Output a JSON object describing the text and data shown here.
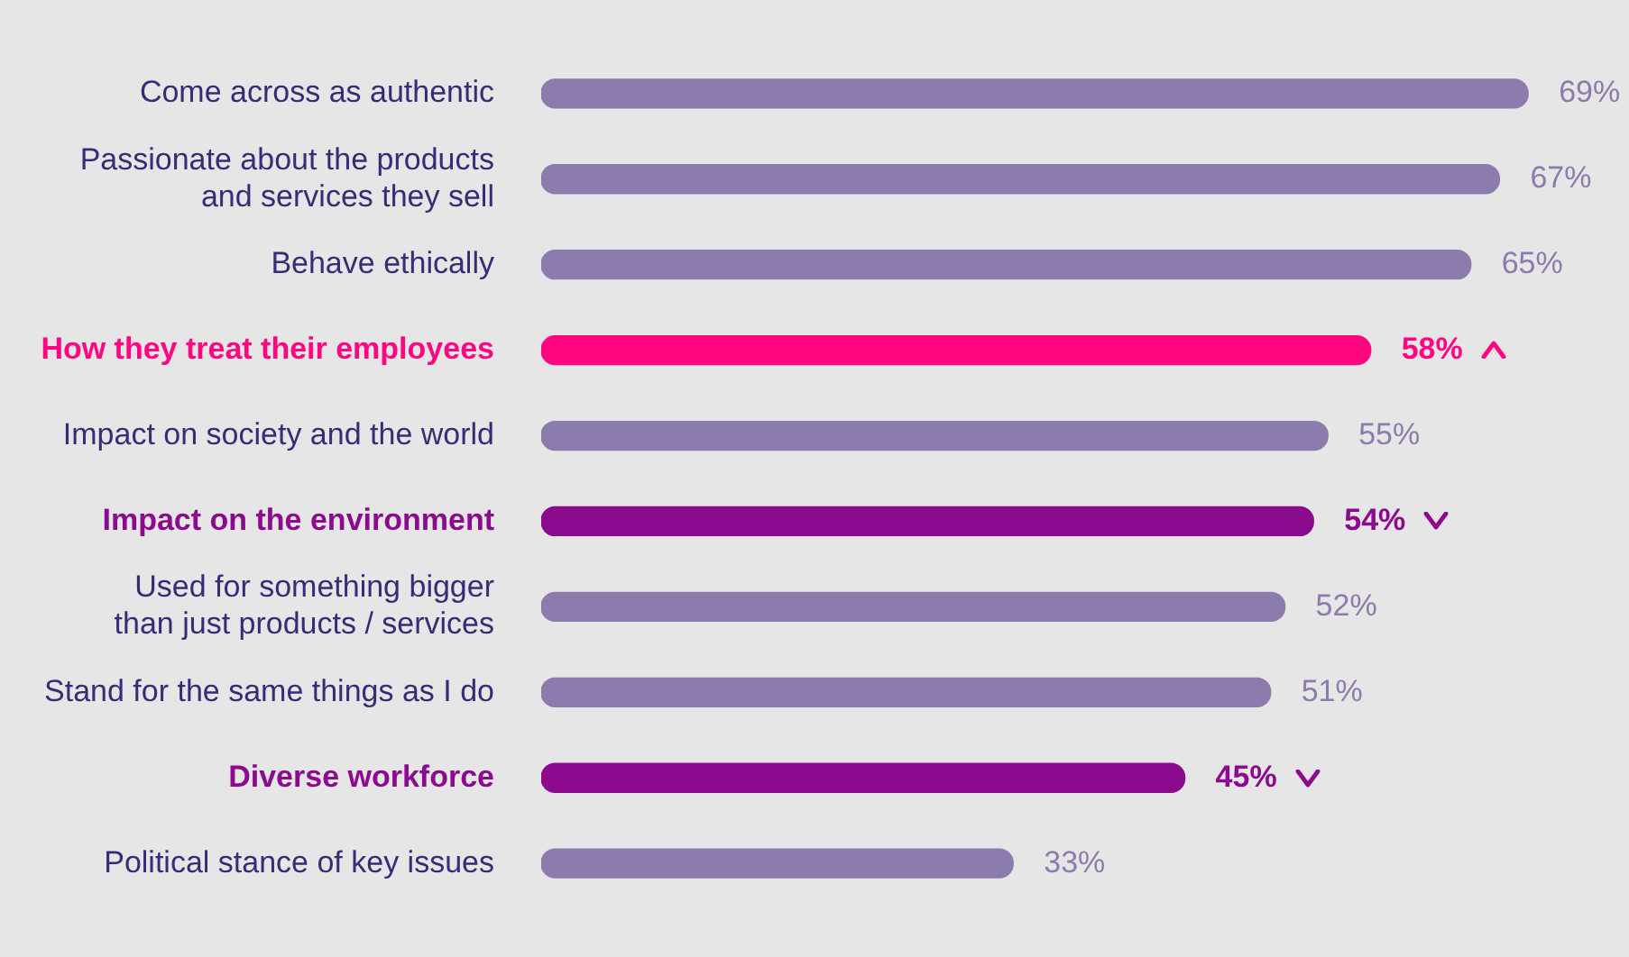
{
  "chart_data": {
    "type": "bar",
    "orientation": "horizontal",
    "categories": [
      "Come across as authentic",
      "Passionate about the products and services they sell",
      "Behave ethically",
      "How they treat their employees",
      "Impact on society and the world",
      "Impact on the environment",
      "Used for something bigger than just products / services",
      "Stand for the same things as I do",
      "Diverse workforce",
      "Political stance of key issues"
    ],
    "values": [
      69,
      67,
      65,
      58,
      55,
      54,
      52,
      51,
      45,
      33
    ],
    "colors": [
      "#8c7bad",
      "#8c7bad",
      "#8c7bad",
      "#ff057f",
      "#8c7bad",
      "#8b0a8e",
      "#8c7bad",
      "#8c7bad",
      "#8b0a8e",
      "#8c7bad"
    ],
    "value_labels": [
      "69%",
      "67%",
      "65%",
      "58%",
      "55%",
      "54%",
      "52%",
      "51%",
      "45%",
      "33%"
    ],
    "tick_labels": "y",
    "legend": false
  }
}
